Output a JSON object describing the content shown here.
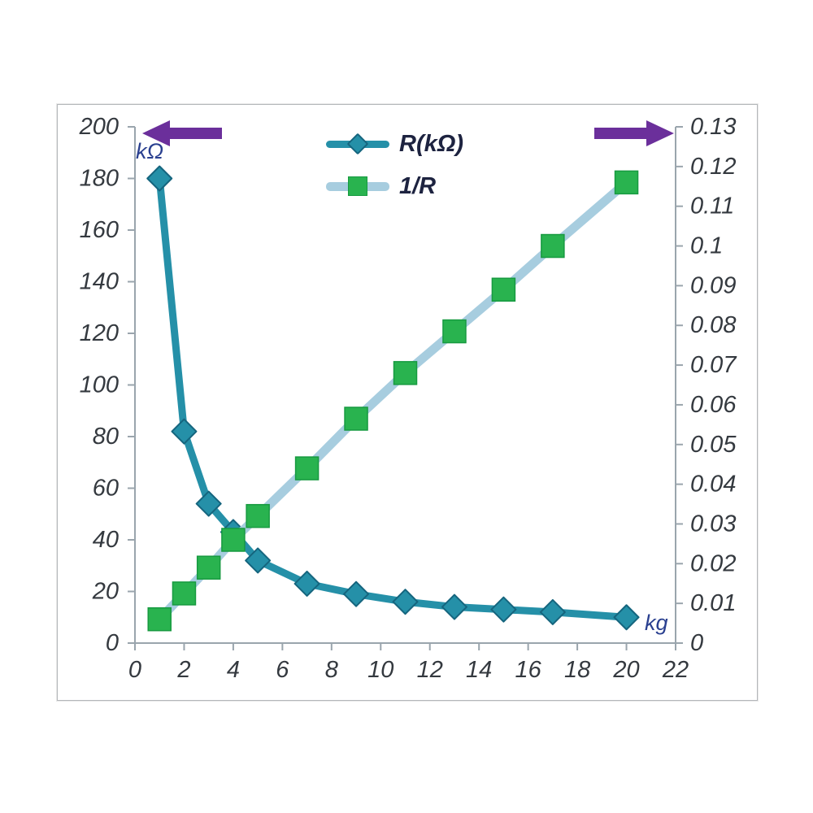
{
  "chart_data": {
    "type": "line",
    "title": "",
    "x": [
      1,
      2,
      3,
      4,
      5,
      7,
      9,
      11,
      13,
      15,
      17,
      20
    ],
    "series": [
      {
        "key": "r-series",
        "name": "R(kΩ)",
        "axis": "left",
        "values": [
          180,
          82,
          54,
          43,
          32,
          23,
          19,
          16,
          14,
          13,
          12,
          10
        ],
        "line_color": "#2590a8",
        "line_width": 9,
        "marker": "diamond",
        "marker_color": "#2590a8",
        "marker_edge": "#15657e"
      },
      {
        "key": "inv-r-series",
        "name": "1/R",
        "axis": "right",
        "values": [
          0.006,
          0.0125,
          0.019,
          0.026,
          0.032,
          0.044,
          0.0565,
          0.068,
          0.0785,
          0.089,
          0.1,
          0.116
        ],
        "line_color": "#a7cddf",
        "line_width": 11,
        "marker": "square",
        "marker_color": "#29b34f",
        "marker_edge": "#179a40"
      }
    ],
    "left_axis": {
      "label": "kΩ",
      "min": 0,
      "max": 200,
      "step": 20
    },
    "right_axis": {
      "label": "",
      "min": 0,
      "max": 0.13,
      "step": 0.01
    },
    "x_axis": {
      "label": "kg",
      "min": 0,
      "max": 22,
      "step": 2
    },
    "legend": [
      "R(kΩ)",
      "1/R"
    ],
    "legend_position": "top-center",
    "grid": false,
    "arrow_color": "#6b2f9b",
    "axis_line_color": "#9aa5ad",
    "tick_label_color": "#34393f",
    "unit_label_color": "#2a4090"
  }
}
